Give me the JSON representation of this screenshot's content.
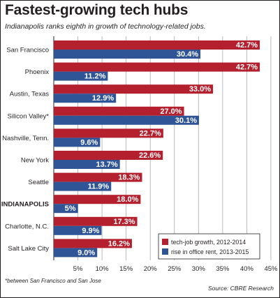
{
  "header": {
    "title": "Fastest-growing tech hubs",
    "subtitle": "Indianapolis ranks eighth in growth of technology-related jobs."
  },
  "footer": {
    "footnote": "*between San Francisco and San Jose",
    "source": "Source: CBRE Research"
  },
  "colors": {
    "series_1": "#b5202e",
    "series_2": "#2f5597",
    "grid": "#a7a9ac"
  },
  "chart_data": {
    "type": "bar",
    "orientation": "horizontal",
    "title": "Fastest-growing tech hubs",
    "subtitle": "Indianapolis ranks eighth in growth of technology-related jobs.",
    "categories": [
      "San Francisco",
      "Phoenix",
      "Austin, Texas",
      "Silicon Valley*",
      "Nashville, Tenn.",
      "New York",
      "Seattle",
      "INDIANAPOLIS",
      "Charlotte, N.C.",
      "Salt Lake City"
    ],
    "bold_category": "INDIANAPOLIS",
    "series": [
      {
        "name": "tech-job growth, 2012-2014",
        "values": [
          42.7,
          42.7,
          33.0,
          27.0,
          22.7,
          22.6,
          18.3,
          18.0,
          17.3,
          16.2
        ],
        "labels": [
          "42.7%",
          "42.7%",
          "33.0%",
          "27.0%",
          "22.7%",
          "22.6%",
          "18.3%",
          "18.0%",
          "17.3%",
          "16.2%"
        ]
      },
      {
        "name": "rise in office rent, 2013-2015",
        "values": [
          30.4,
          11.2,
          12.9,
          30.1,
          9.6,
          13.7,
          11.9,
          5,
          9.9,
          9.0
        ],
        "labels": [
          "30.4%",
          "11.2%",
          "12.9%",
          "30.1%",
          "9.6%",
          "13.7%",
          "11.9%",
          "5%",
          "9.9%",
          "9.0%"
        ]
      }
    ],
    "xlim": [
      0,
      45
    ],
    "xticks": [
      5,
      10,
      15,
      20,
      25,
      30,
      35,
      40,
      45
    ],
    "xtick_labels": [
      "5%",
      "10%",
      "15%",
      "20%",
      "25%",
      "30%",
      "35%",
      "40%",
      "45%"
    ],
    "grid": true,
    "legend_position": "bottom-right"
  }
}
